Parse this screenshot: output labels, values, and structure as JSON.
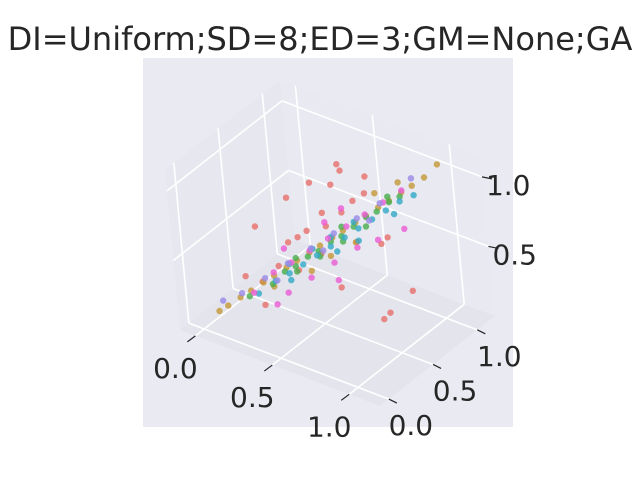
{
  "chart_data": {
    "type": "scatter",
    "projection": "3d",
    "title": "DI=Uniform;SD=8;ED=3;GM=None;GA",
    "xlabel": "",
    "ylabel": "",
    "zlabel": "",
    "xlim": [
      -0.1,
      1.2
    ],
    "ylim": [
      -0.1,
      1.2
    ],
    "zlim": [
      0.0,
      1.15
    ],
    "x_ticks": [
      "0.0",
      "0.5",
      "1.0"
    ],
    "y_ticks": [
      "0.0",
      "0.5",
      "1.0"
    ],
    "z_ticks": [
      "0.5",
      "1.0"
    ],
    "grid": true,
    "legend": "none",
    "colors": {
      "background": "#eaeaf2",
      "pane": "#e6e6ef",
      "text": "#262626"
    },
    "series": [
      {
        "color": "#e8736e",
        "points": [
          [
            0.12,
            0.3,
            0.28
          ],
          [
            0.2,
            0.35,
            0.25
          ],
          [
            0.3,
            0.5,
            0.5
          ],
          [
            0.35,
            0.3,
            0.45
          ],
          [
            0.4,
            0.55,
            0.6
          ],
          [
            0.45,
            0.65,
            0.7
          ],
          [
            0.5,
            0.6,
            0.65
          ],
          [
            0.55,
            0.7,
            0.72
          ],
          [
            0.6,
            0.75,
            0.8
          ],
          [
            0.65,
            0.8,
            0.85
          ],
          [
            0.3,
            0.2,
            0.2
          ],
          [
            0.42,
            0.4,
            0.4
          ],
          [
            0.55,
            0.45,
            0.55
          ],
          [
            0.7,
            0.6,
            0.62
          ],
          [
            0.8,
            0.7,
            0.6
          ],
          [
            0.9,
            0.5,
            0.2
          ],
          [
            0.85,
            0.65,
            0.15
          ],
          [
            0.5,
            0.8,
            0.95
          ],
          [
            0.6,
            0.9,
            0.9
          ],
          [
            0.25,
            0.6,
            0.75
          ],
          [
            0.35,
            0.7,
            0.85
          ],
          [
            0.45,
            0.85,
            0.95
          ],
          [
            0.15,
            0.4,
            0.6
          ],
          [
            0.75,
            0.85,
            0.55
          ],
          [
            0.95,
            0.75,
            0.3
          ],
          [
            0.62,
            0.52,
            0.3
          ],
          [
            0.48,
            0.72,
            0.88
          ],
          [
            0.38,
            0.48,
            0.58
          ]
        ]
      },
      {
        "color": "#c49a3a",
        "points": [
          [
            0.05,
            0.1,
            0.1
          ],
          [
            0.1,
            0.12,
            0.15
          ],
          [
            0.15,
            0.18,
            0.2
          ],
          [
            0.2,
            0.22,
            0.25
          ],
          [
            0.25,
            0.28,
            0.3
          ],
          [
            0.3,
            0.32,
            0.35
          ],
          [
            0.35,
            0.38,
            0.4
          ],
          [
            0.4,
            0.42,
            0.45
          ],
          [
            0.45,
            0.48,
            0.5
          ],
          [
            0.5,
            0.52,
            0.55
          ],
          [
            0.55,
            0.58,
            0.6
          ],
          [
            0.6,
            0.62,
            0.65
          ],
          [
            0.65,
            0.68,
            0.7
          ],
          [
            0.7,
            0.72,
            0.75
          ],
          [
            0.75,
            0.78,
            0.8
          ],
          [
            0.8,
            0.82,
            0.85
          ],
          [
            0.85,
            0.88,
            0.9
          ],
          [
            0.9,
            0.92,
            0.95
          ],
          [
            0.95,
            0.98,
            1.0
          ],
          [
            1.0,
            1.05,
            1.08
          ],
          [
            0.58,
            0.5,
            0.52
          ],
          [
            0.68,
            0.62,
            0.6
          ],
          [
            0.32,
            0.28,
            0.3
          ],
          [
            0.82,
            0.9,
            0.95
          ],
          [
            0.72,
            0.8,
            0.88
          ],
          [
            0.48,
            0.44,
            0.4
          ]
        ]
      },
      {
        "color": "#4bae50",
        "points": [
          [
            0.2,
            0.2,
            0.22
          ],
          [
            0.3,
            0.3,
            0.3
          ],
          [
            0.35,
            0.36,
            0.38
          ],
          [
            0.4,
            0.4,
            0.42
          ],
          [
            0.45,
            0.46,
            0.48
          ],
          [
            0.5,
            0.5,
            0.52
          ],
          [
            0.55,
            0.56,
            0.58
          ],
          [
            0.6,
            0.6,
            0.62
          ],
          [
            0.65,
            0.66,
            0.68
          ],
          [
            0.7,
            0.72,
            0.74
          ],
          [
            0.75,
            0.76,
            0.78
          ],
          [
            0.8,
            0.82,
            0.84
          ],
          [
            0.85,
            0.86,
            0.88
          ],
          [
            0.42,
            0.38,
            0.4
          ],
          [
            0.52,
            0.48,
            0.5
          ],
          [
            0.62,
            0.58,
            0.6
          ],
          [
            0.72,
            0.68,
            0.7
          ],
          [
            0.38,
            0.44,
            0.45
          ],
          [
            0.58,
            0.64,
            0.66
          ],
          [
            0.78,
            0.84,
            0.86
          ]
        ]
      },
      {
        "color": "#36a9c7",
        "points": [
          [
            0.25,
            0.22,
            0.25
          ],
          [
            0.32,
            0.3,
            0.33
          ],
          [
            0.38,
            0.36,
            0.38
          ],
          [
            0.44,
            0.42,
            0.44
          ],
          [
            0.5,
            0.48,
            0.5
          ],
          [
            0.56,
            0.54,
            0.56
          ],
          [
            0.62,
            0.6,
            0.62
          ],
          [
            0.68,
            0.66,
            0.68
          ],
          [
            0.74,
            0.72,
            0.74
          ],
          [
            0.8,
            0.78,
            0.8
          ],
          [
            0.86,
            0.84,
            0.86
          ],
          [
            0.92,
            0.9,
            0.9
          ],
          [
            0.46,
            0.5,
            0.52
          ],
          [
            0.54,
            0.58,
            0.6
          ],
          [
            0.64,
            0.68,
            0.7
          ],
          [
            0.36,
            0.4,
            0.42
          ],
          [
            0.7,
            0.62,
            0.62
          ],
          [
            0.84,
            0.8,
            0.78
          ],
          [
            0.4,
            0.34,
            0.35
          ],
          [
            0.6,
            0.54,
            0.54
          ]
        ]
      },
      {
        "color": "#ea5fd6",
        "points": [
          [
            0.2,
            0.25,
            0.22
          ],
          [
            0.28,
            0.35,
            0.35
          ],
          [
            0.36,
            0.42,
            0.42
          ],
          [
            0.44,
            0.5,
            0.5
          ],
          [
            0.52,
            0.58,
            0.58
          ],
          [
            0.6,
            0.66,
            0.66
          ],
          [
            0.68,
            0.74,
            0.74
          ],
          [
            0.76,
            0.82,
            0.82
          ],
          [
            0.84,
            0.9,
            0.9
          ],
          [
            0.4,
            0.3,
            0.28
          ],
          [
            0.5,
            0.4,
            0.38
          ],
          [
            0.6,
            0.5,
            0.48
          ],
          [
            0.7,
            0.6,
            0.58
          ],
          [
            0.3,
            0.45,
            0.48
          ],
          [
            0.55,
            0.7,
            0.75
          ],
          [
            0.65,
            0.45,
            0.4
          ],
          [
            0.9,
            0.8,
            0.7
          ],
          [
            0.35,
            0.25,
            0.2
          ],
          [
            0.78,
            0.7,
            0.62
          ],
          [
            0.48,
            0.62,
            0.66
          ]
        ]
      },
      {
        "color": "#9b8be6",
        "points": [
          [
            0.05,
            0.15,
            0.15
          ],
          [
            0.15,
            0.2,
            0.22
          ],
          [
            0.25,
            0.3,
            0.32
          ],
          [
            0.35,
            0.4,
            0.42
          ],
          [
            0.45,
            0.5,
            0.52
          ],
          [
            0.55,
            0.6,
            0.62
          ],
          [
            0.65,
            0.7,
            0.72
          ],
          [
            0.75,
            0.8,
            0.82
          ],
          [
            0.3,
            0.35,
            0.3
          ],
          [
            0.5,
            0.55,
            0.5
          ],
          [
            0.7,
            0.75,
            0.7
          ],
          [
            0.88,
            0.95,
            0.98
          ]
        ]
      }
    ]
  }
}
